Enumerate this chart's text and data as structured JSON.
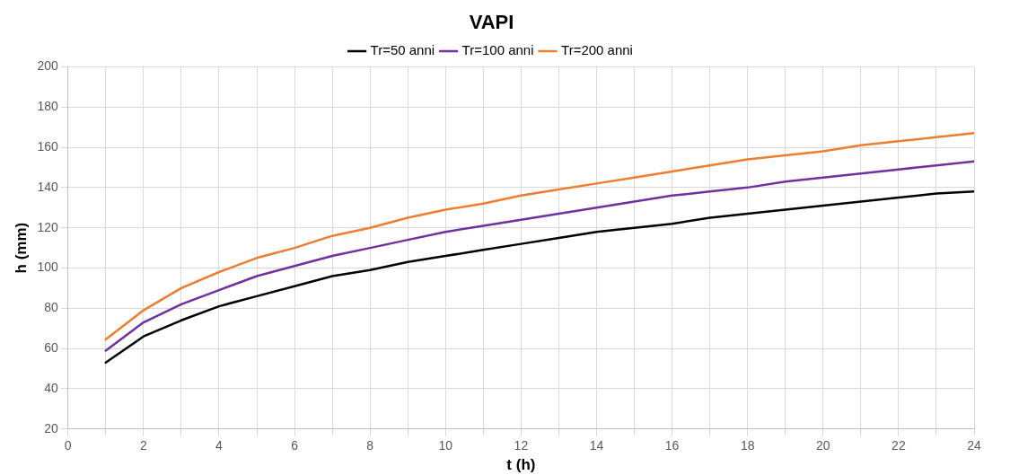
{
  "chart_data": {
    "type": "line",
    "title": "VAPI",
    "xlabel": "t (h)",
    "ylabel": "h (mm)",
    "x": [
      1,
      2,
      3,
      4,
      5,
      6,
      7,
      8,
      9,
      10,
      11,
      12,
      13,
      14,
      15,
      16,
      17,
      18,
      19,
      20,
      21,
      22,
      23,
      24
    ],
    "series": [
      {
        "name": "Tr=50 anni",
        "color": "#000000",
        "values": [
          53,
          66,
          74,
          81,
          86,
          91,
          96,
          99,
          103,
          106,
          109,
          112,
          115,
          118,
          120,
          122,
          125,
          127,
          129,
          131,
          133,
          135,
          137,
          138
        ]
      },
      {
        "name": "Tr=100 anni",
        "color": "#7030a0",
        "values": [
          59,
          73,
          82,
          89,
          96,
          101,
          106,
          110,
          114,
          118,
          121,
          124,
          127,
          130,
          133,
          136,
          138,
          140,
          143,
          145,
          147,
          149,
          151,
          153
        ]
      },
      {
        "name": "Tr=200 anni",
        "color": "#ed7d31",
        "values": [
          64.5,
          79,
          90,
          98,
          105,
          110,
          116,
          120,
          125,
          129,
          132,
          136,
          139,
          142,
          145,
          148,
          151,
          154,
          156,
          158,
          161,
          163,
          165,
          167
        ]
      }
    ],
    "xlim": [
      0,
      24
    ],
    "xticks": [
      0,
      {
        "value": 1,
        "label": null
      },
      2,
      {
        "value": 3,
        "label": null
      },
      4,
      {
        "value": 5,
        "label": null
      },
      6,
      {
        "value": 7,
        "label": null
      },
      8,
      {
        "value": 9,
        "label": null
      },
      10,
      {
        "value": 11,
        "label": null
      },
      12,
      {
        "value": 13,
        "label": null
      },
      14,
      {
        "value": 15,
        "label": null
      },
      16,
      {
        "value": 17,
        "label": null
      },
      18,
      {
        "value": 19,
        "label": null
      },
      20,
      {
        "value": 21,
        "label": null
      },
      22,
      {
        "value": 23,
        "label": null
      },
      24
    ],
    "ylim": [
      20,
      200
    ],
    "yticks": [
      20,
      40,
      60,
      80,
      100,
      120,
      140,
      160,
      180,
      200
    ],
    "grid": true,
    "legend": "top",
    "marker": "none",
    "line_style": "solid"
  }
}
